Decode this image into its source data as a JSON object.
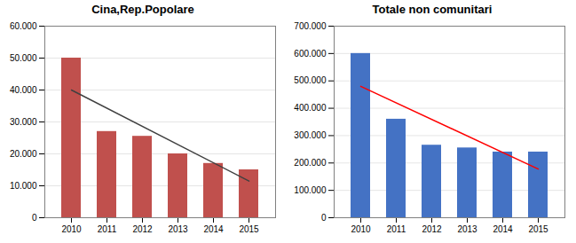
{
  "chart_data": [
    {
      "type": "bar",
      "title": "Cina,Rep.Popolare",
      "categories": [
        "2010",
        "2011",
        "2012",
        "2013",
        "2014",
        "2015"
      ],
      "values": [
        50000,
        27000,
        25500,
        20000,
        17000,
        15000
      ],
      "color": "#C0504D",
      "trend": {
        "categories": [
          "2010",
          "2015"
        ],
        "values": [
          40000,
          11500
        ],
        "color": "#404040"
      },
      "ylim": [
        0,
        60000
      ],
      "yticks": [
        0,
        {
          "value": 10000,
          "label": "10.000"
        },
        {
          "value": 20000,
          "label": "20.000"
        },
        {
          "value": 30000,
          "label": "30.000"
        },
        {
          "value": 40000,
          "label": "40.000"
        },
        {
          "value": 50000,
          "label": "50.000"
        },
        {
          "value": 60000,
          "label": "60.000"
        }
      ],
      "grid": true
    },
    {
      "type": "bar",
      "title": "Totale non comunitari",
      "categories": [
        "2010",
        "2011",
        "2012",
        "2013",
        "2014",
        "2015"
      ],
      "values": [
        600000,
        360000,
        265000,
        255000,
        240000,
        240000
      ],
      "color": "#4472C4",
      "trend": {
        "categories": [
          "2010",
          "2015"
        ],
        "values": [
          480000,
          178000
        ],
        "color": "#FF0000"
      },
      "ylim": [
        0,
        700000
      ],
      "yticks": [
        0,
        {
          "value": 100000,
          "label": "100.000"
        },
        {
          "value": 200000,
          "label": "200.000"
        },
        {
          "value": 300000,
          "label": "300.000"
        },
        {
          "value": 400000,
          "label": "400.000"
        },
        {
          "value": 500000,
          "label": "500.000"
        },
        {
          "value": 600000,
          "label": "600.000"
        },
        {
          "value": 700000,
          "label": "700.000"
        }
      ],
      "grid": true
    }
  ]
}
